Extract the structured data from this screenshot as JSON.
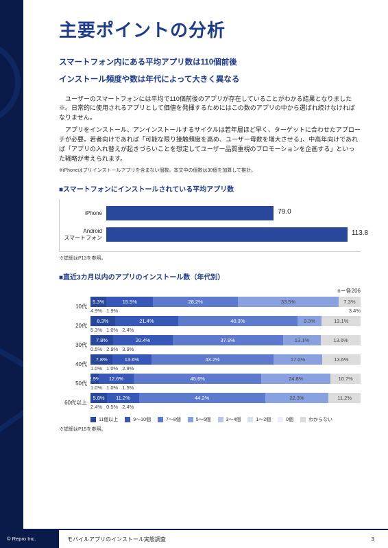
{
  "title": "主要ポイントの分析",
  "lead1": "スマートフォン内にある平均アプリ数は110個前後",
  "lead2": "インストール頻度や数は年代によって大きく異なる",
  "para1": "ユーザーのスマートフォンには平均で110個前後のアプリが存在していることがわかる結果となりました※。日常的に使用されるアプリとして価値を発揮するためにはこの数のアプリの中から選ばれ続けなければなりません。",
  "para2": "アプリをインストール、アンインストールするサイクルは若年層ほど早く、ターゲットに合わせたアプローチが必要。若者向けであれば「可能な限り接触頻度を高め、ユーザー母数を増大させる」、中高年向けであれば「アプリの入れ替えが起きづらいことを想定してユーザー品質重視のプロモーションを企画する」といった戦略が考えられます。",
  "iphone_note": "※iPhoneはプリインストールアプリを含まない個数。本文中の個数は30個を加算して推計。",
  "chart1": {
    "heading": "■スマートフォンにインストールされている平均アプリ数",
    "max": 120,
    "bar_color": "#29489c",
    "bars": [
      {
        "label": "iPhone",
        "value": 79.0
      },
      {
        "label": "Android\nスマートフォン",
        "value": 113.8
      }
    ],
    "ref": "※詳細はP13を参照。"
  },
  "chart2": {
    "heading": "■直近3カ月以内のアプリのインストール数（年代別）",
    "n_note": "n＝各206",
    "colors": {
      "c11": "#29489c",
      "c9_10": "#3758b7",
      "c7_8": "#5d7acd",
      "c5_6": "#8aa1e0",
      "c3_4": "#b8c6ec",
      "c1_2": "#d8e0f4",
      "c0": "#eceff8",
      "unk": "#dcdcdc"
    },
    "rows": [
      {
        "age": "10代",
        "main": [
          {
            "k": "c11",
            "v": 5.3
          },
          {
            "k": "c9_10",
            "v": 15.5
          },
          {
            "k": "c7_8",
            "v": 28.2
          },
          {
            "k": "c5_6",
            "v": 33.5
          },
          {
            "k": "unk",
            "v": 7.3
          }
        ],
        "sub": [
          {
            "k": "c3_4",
            "v": 4.9
          },
          {
            "k": "c1_2",
            "v": 1.9
          },
          {
            "k": "c0",
            "v": 3.4,
            "right": true
          }
        ]
      },
      {
        "age": "20代",
        "main": [
          {
            "k": "c11",
            "v": 8.3
          },
          {
            "k": "c9_10",
            "v": 21.4
          },
          {
            "k": "c7_8",
            "v": 40.3
          },
          {
            "k": "c5_6",
            "v": 8.3
          },
          {
            "k": "unk",
            "v": 13.1
          }
        ],
        "sub": [
          {
            "k": "c3_4",
            "v": 5.3
          },
          {
            "k": "c1_2",
            "v": 1.0
          },
          {
            "k": "c0",
            "v": 2.4
          }
        ]
      },
      {
        "age": "30代",
        "main": [
          {
            "k": "c11",
            "v": 7.8
          },
          {
            "k": "c9_10",
            "v": 20.4
          },
          {
            "k": "c7_8",
            "v": 37.9
          },
          {
            "k": "c5_6",
            "v": 13.1
          },
          {
            "k": "unk",
            "v": 13.6
          }
        ],
        "sub": [
          {
            "k": "c3_4",
            "v": 0.5
          },
          {
            "k": "c1_2",
            "v": 2.9
          },
          {
            "k": "c0",
            "v": 3.9
          }
        ]
      },
      {
        "age": "40代",
        "main": [
          {
            "k": "c11",
            "v": 7.8
          },
          {
            "k": "c9_10",
            "v": 13.6
          },
          {
            "k": "c7_8",
            "v": 43.2
          },
          {
            "k": "c5_6",
            "v": 17.0
          },
          {
            "k": "unk",
            "v": 13.6
          }
        ],
        "sub": [
          {
            "k": "c3_4",
            "v": 1.0
          },
          {
            "k": "c1_2",
            "v": 1.0
          },
          {
            "k": "c0",
            "v": 2.9
          }
        ]
      },
      {
        "age": "50代",
        "main": [
          {
            "k": "c11",
            "v": 2.9
          },
          {
            "k": "c9_10",
            "v": 12.6
          },
          {
            "k": "c7_8",
            "v": 45.6
          },
          {
            "k": "c5_6",
            "v": 24.8
          },
          {
            "k": "unk",
            "v": 10.7
          }
        ],
        "sub": [
          {
            "k": "c3_4",
            "v": 1.0
          },
          {
            "k": "c1_2",
            "v": 1.0
          },
          {
            "k": "c0",
            "v": 1.5
          }
        ]
      },
      {
        "age": "60代以上",
        "main": [
          {
            "k": "c11",
            "v": 5.8
          },
          {
            "k": "c9_10",
            "v": 11.2
          },
          {
            "k": "c7_8",
            "v": 44.2
          },
          {
            "k": "c5_6",
            "v": 22.3
          },
          {
            "k": "unk",
            "v": 11.2
          }
        ],
        "sub": [
          {
            "k": "c3_4",
            "v": 2.4
          },
          {
            "k": "c1_2",
            "v": 0.5
          },
          {
            "k": "c0",
            "v": 2.4
          }
        ]
      }
    ],
    "legend": [
      {
        "k": "c11",
        "label": "11個以上"
      },
      {
        "k": "c9_10",
        "label": "9〜10個"
      },
      {
        "k": "c7_8",
        "label": "7〜8個"
      },
      {
        "k": "c5_6",
        "label": "5〜6個"
      },
      {
        "k": "c3_4",
        "label": "3〜4個"
      },
      {
        "k": "c1_2",
        "label": "1〜2個"
      },
      {
        "k": "c0",
        "label": "0個"
      },
      {
        "k": "unk",
        "label": "わからない"
      }
    ],
    "ref": "※詳細はP15を参照。"
  },
  "footer": {
    "copyright": "© Repro Inc.",
    "title": "モバイルアプリのインストール実態調査",
    "page": "3"
  }
}
